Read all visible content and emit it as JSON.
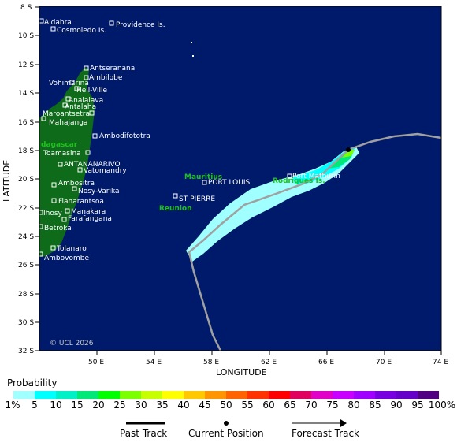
{
  "map": {
    "copyright": "© UCL 2026",
    "x_axis_title": "LONGITUDE",
    "y_axis_title": "LATITUDE",
    "x_ticks": [
      "50 E",
      "54 E",
      "58 E",
      "62 E",
      "66 E",
      "70 E",
      "74 E"
    ],
    "y_ticks": [
      "8 S",
      "10 S",
      "12 S",
      "14 S",
      "16 S",
      "18 S",
      "20 S",
      "22 S",
      "24 S",
      "26 S",
      "28 S",
      "30 S",
      "32 S"
    ],
    "place_labels": [
      "Aldabra",
      "Providence Is.",
      "Cosmoledo Is.",
      "Antseranana",
      "Ambilobe",
      "Vohimarina",
      "Hell-Ville",
      "Analalava",
      "Antalaha",
      "Maroantsetra",
      "Mahajanga",
      "Ambodifototra",
      "Toamasina",
      "ANTANANARIVO",
      "Vatomandry",
      "Ambositra",
      "Nosy-Varika",
      "Fianarantsoa",
      "Ihosy",
      "Manakara",
      "Farafangana",
      "Betroka",
      "Tolanaro",
      "Ambovombe",
      "PORT LOUIS",
      "ST PIERRE",
      "Port Mathurin"
    ],
    "region_labels": [
      "dagascar",
      "Mauritius",
      "Rodrigues Is.",
      "Reunion"
    ]
  },
  "legend": {
    "title": "Probability",
    "colors": [
      "#a0ffff",
      "#00ffff",
      "#00f0c8",
      "#00e878",
      "#00ff00",
      "#7cff00",
      "#c8ff00",
      "#ffff00",
      "#ffc800",
      "#ff9600",
      "#ff6400",
      "#ff3200",
      "#ff0000",
      "#e00060",
      "#e000c8",
      "#c800ff",
      "#a000ff",
      "#7800e0",
      "#6400c8",
      "#500080"
    ],
    "labels": [
      "1%",
      "5",
      "10",
      "15",
      "20",
      "25",
      "30",
      "35",
      "40",
      "45",
      "50",
      "55",
      "60",
      "65",
      "70",
      "75",
      "80",
      "85",
      "90",
      "95",
      "100%"
    ]
  },
  "track_legend": {
    "past": "Past Track",
    "current": "Current Position",
    "forecast": "Forecast Track"
  }
}
